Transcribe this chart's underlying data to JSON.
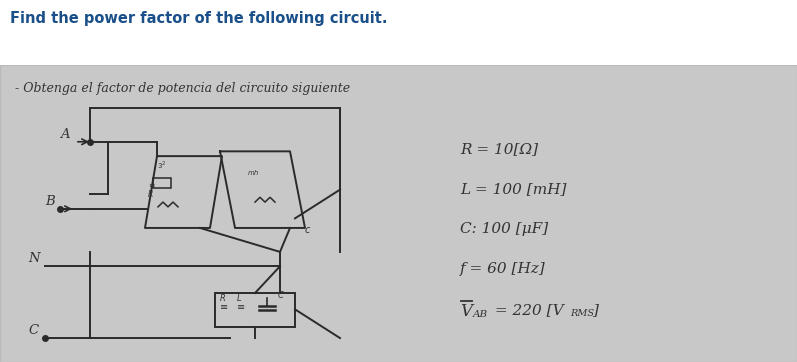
{
  "title": "Find the power factor of the following circuit.",
  "title_fontsize": 10.5,
  "title_color": "#1a4f8a",
  "title_fontweight": "bold",
  "bg_color": "#ffffff",
  "paper_bg": "#c8c8c8",
  "header_text": "- Obtenga el factor de potencia del circuito siguiente",
  "param_R": "R = 10[Ω]",
  "param_L": "L = 100 [mH]",
  "param_C": "C: 100 [μF]",
  "param_f": "f = 60 [Hz]",
  "param_V": "V",
  "param_V_sub": "AB",
  "param_V_rest": " = 220 [V",
  "param_V_rms": "RMS",
  "line_color": "#2a2a2a",
  "text_color": "#333333",
  "border_color": "#bbbbbb"
}
